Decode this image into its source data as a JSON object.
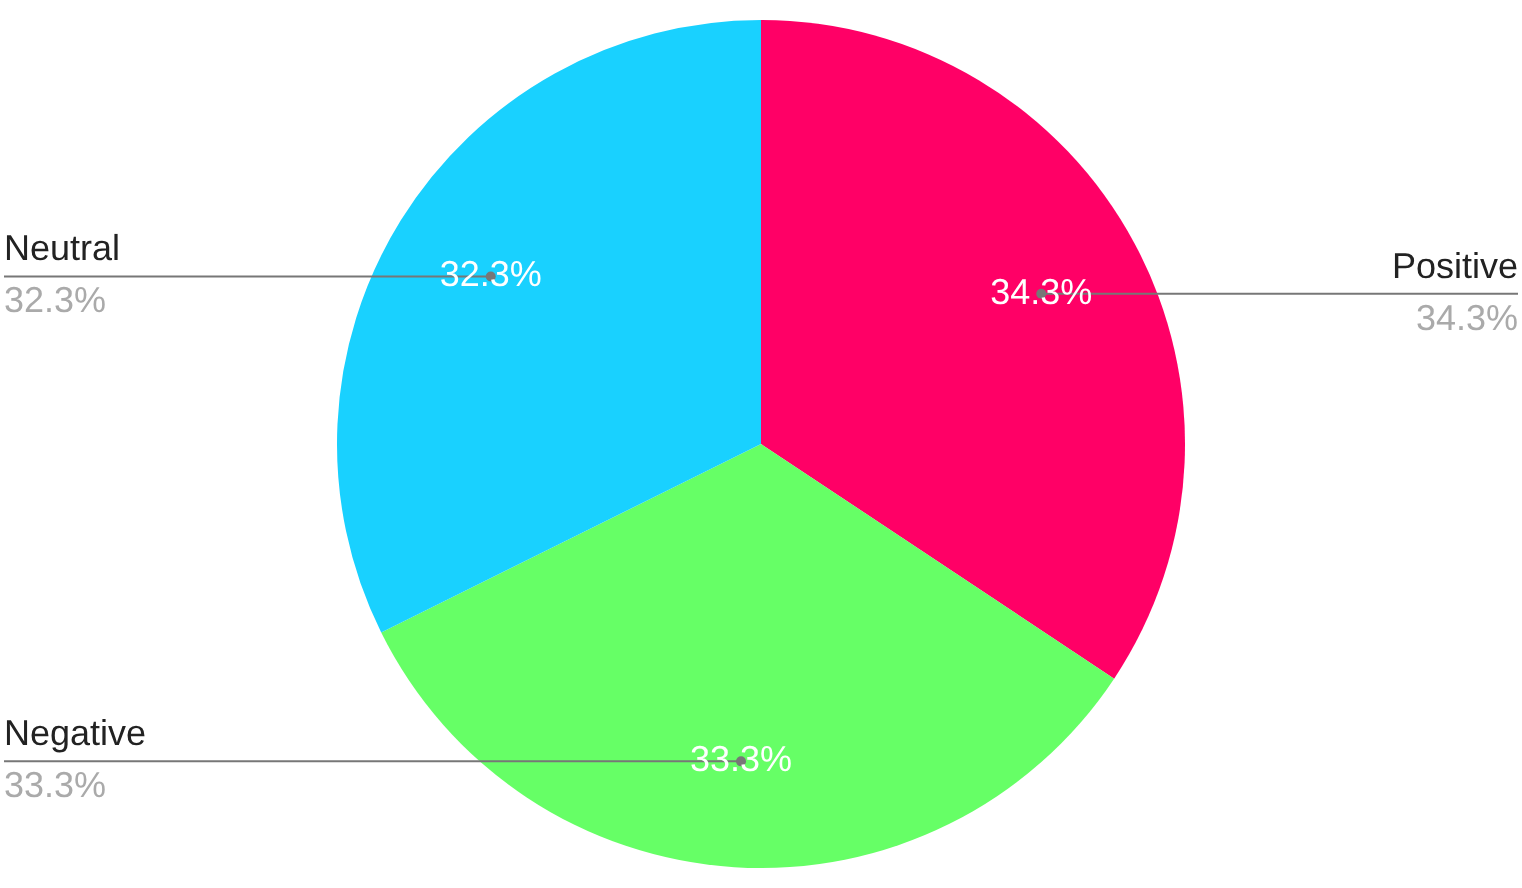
{
  "chart_data": {
    "type": "pie",
    "categories": [
      "Positive",
      "Negative",
      "Neutral"
    ],
    "values": [
      34.3,
      33.3,
      32.3
    ],
    "colors": [
      "#ff0066",
      "#66ff66",
      "#19d1ff"
    ],
    "value_labels": [
      "34.3%",
      "33.3%",
      "32.3%"
    ],
    "legend": false
  }
}
